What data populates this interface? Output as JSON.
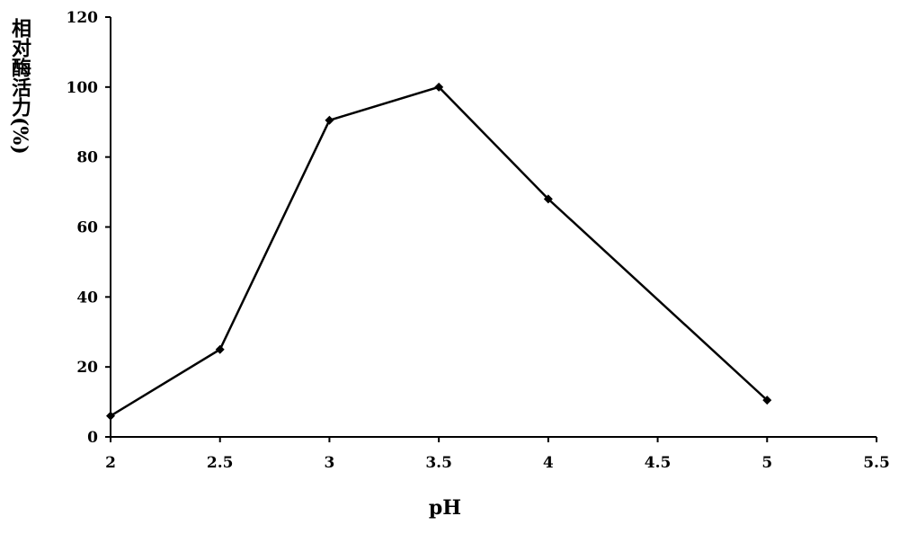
{
  "chart_data": {
    "type": "line",
    "x_label": "pH",
    "y_label": "相对酶活力(%)",
    "series": [
      {
        "name": "relative activity",
        "color": "#000000",
        "x": [
          2,
          2.5,
          3,
          3.5,
          4,
          5
        ],
        "values": [
          6,
          25,
          90.5,
          100,
          68,
          10.5
        ]
      }
    ],
    "xlim": [
      2,
      5.5
    ],
    "xticks": [
      2,
      2.5,
      3,
      3.5,
      4,
      4.5,
      5,
      5.5
    ],
    "ylim": [
      0,
      120
    ],
    "yticks": [
      0,
      20,
      40,
      60,
      80,
      100,
      120
    ],
    "grid": false,
    "marker": "diamond"
  }
}
